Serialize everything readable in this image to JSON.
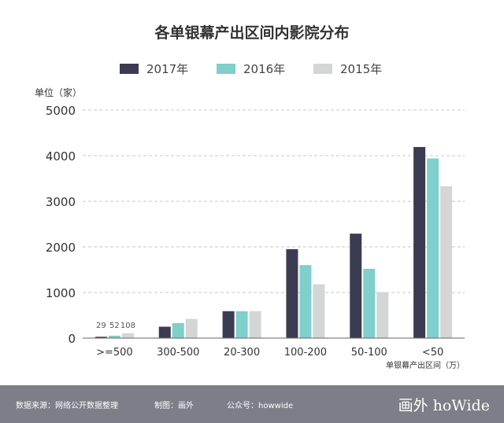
{
  "chart_data": {
    "type": "bar",
    "title": "各单银幕产出区间内影院分布",
    "ylabel": "单位（家）",
    "xlabel": "单银幕产出区间（万）",
    "categories": [
      ">=500",
      "300-500",
      "20-300",
      "100-200",
      "50-100",
      "<50"
    ],
    "ylim": [
      0,
      5000
    ],
    "yticks": [
      0,
      1000,
      2000,
      3000,
      4000,
      5000
    ],
    "grid": true,
    "legend_position": "top-center",
    "series": [
      {
        "name": "2017年",
        "color": "#3b3c52",
        "values": [
          29,
          250,
          590,
          1950,
          2290,
          4190
        ]
      },
      {
        "name": "2016年",
        "color": "#7fcfcb",
        "values": [
          52,
          330,
          590,
          1600,
          1520,
          3940
        ]
      },
      {
        "name": "2015年",
        "color": "#d4d6d6",
        "values": [
          108,
          420,
          590,
          1180,
          1010,
          3330
        ]
      }
    ],
    "data_labels": [
      "29",
      "52",
      "108"
    ]
  },
  "footer": {
    "source": "数据来源：网络公开数据整理",
    "maker": "制图：画外",
    "account": "公众号：howwide",
    "logo": "画外 hoWide"
  }
}
